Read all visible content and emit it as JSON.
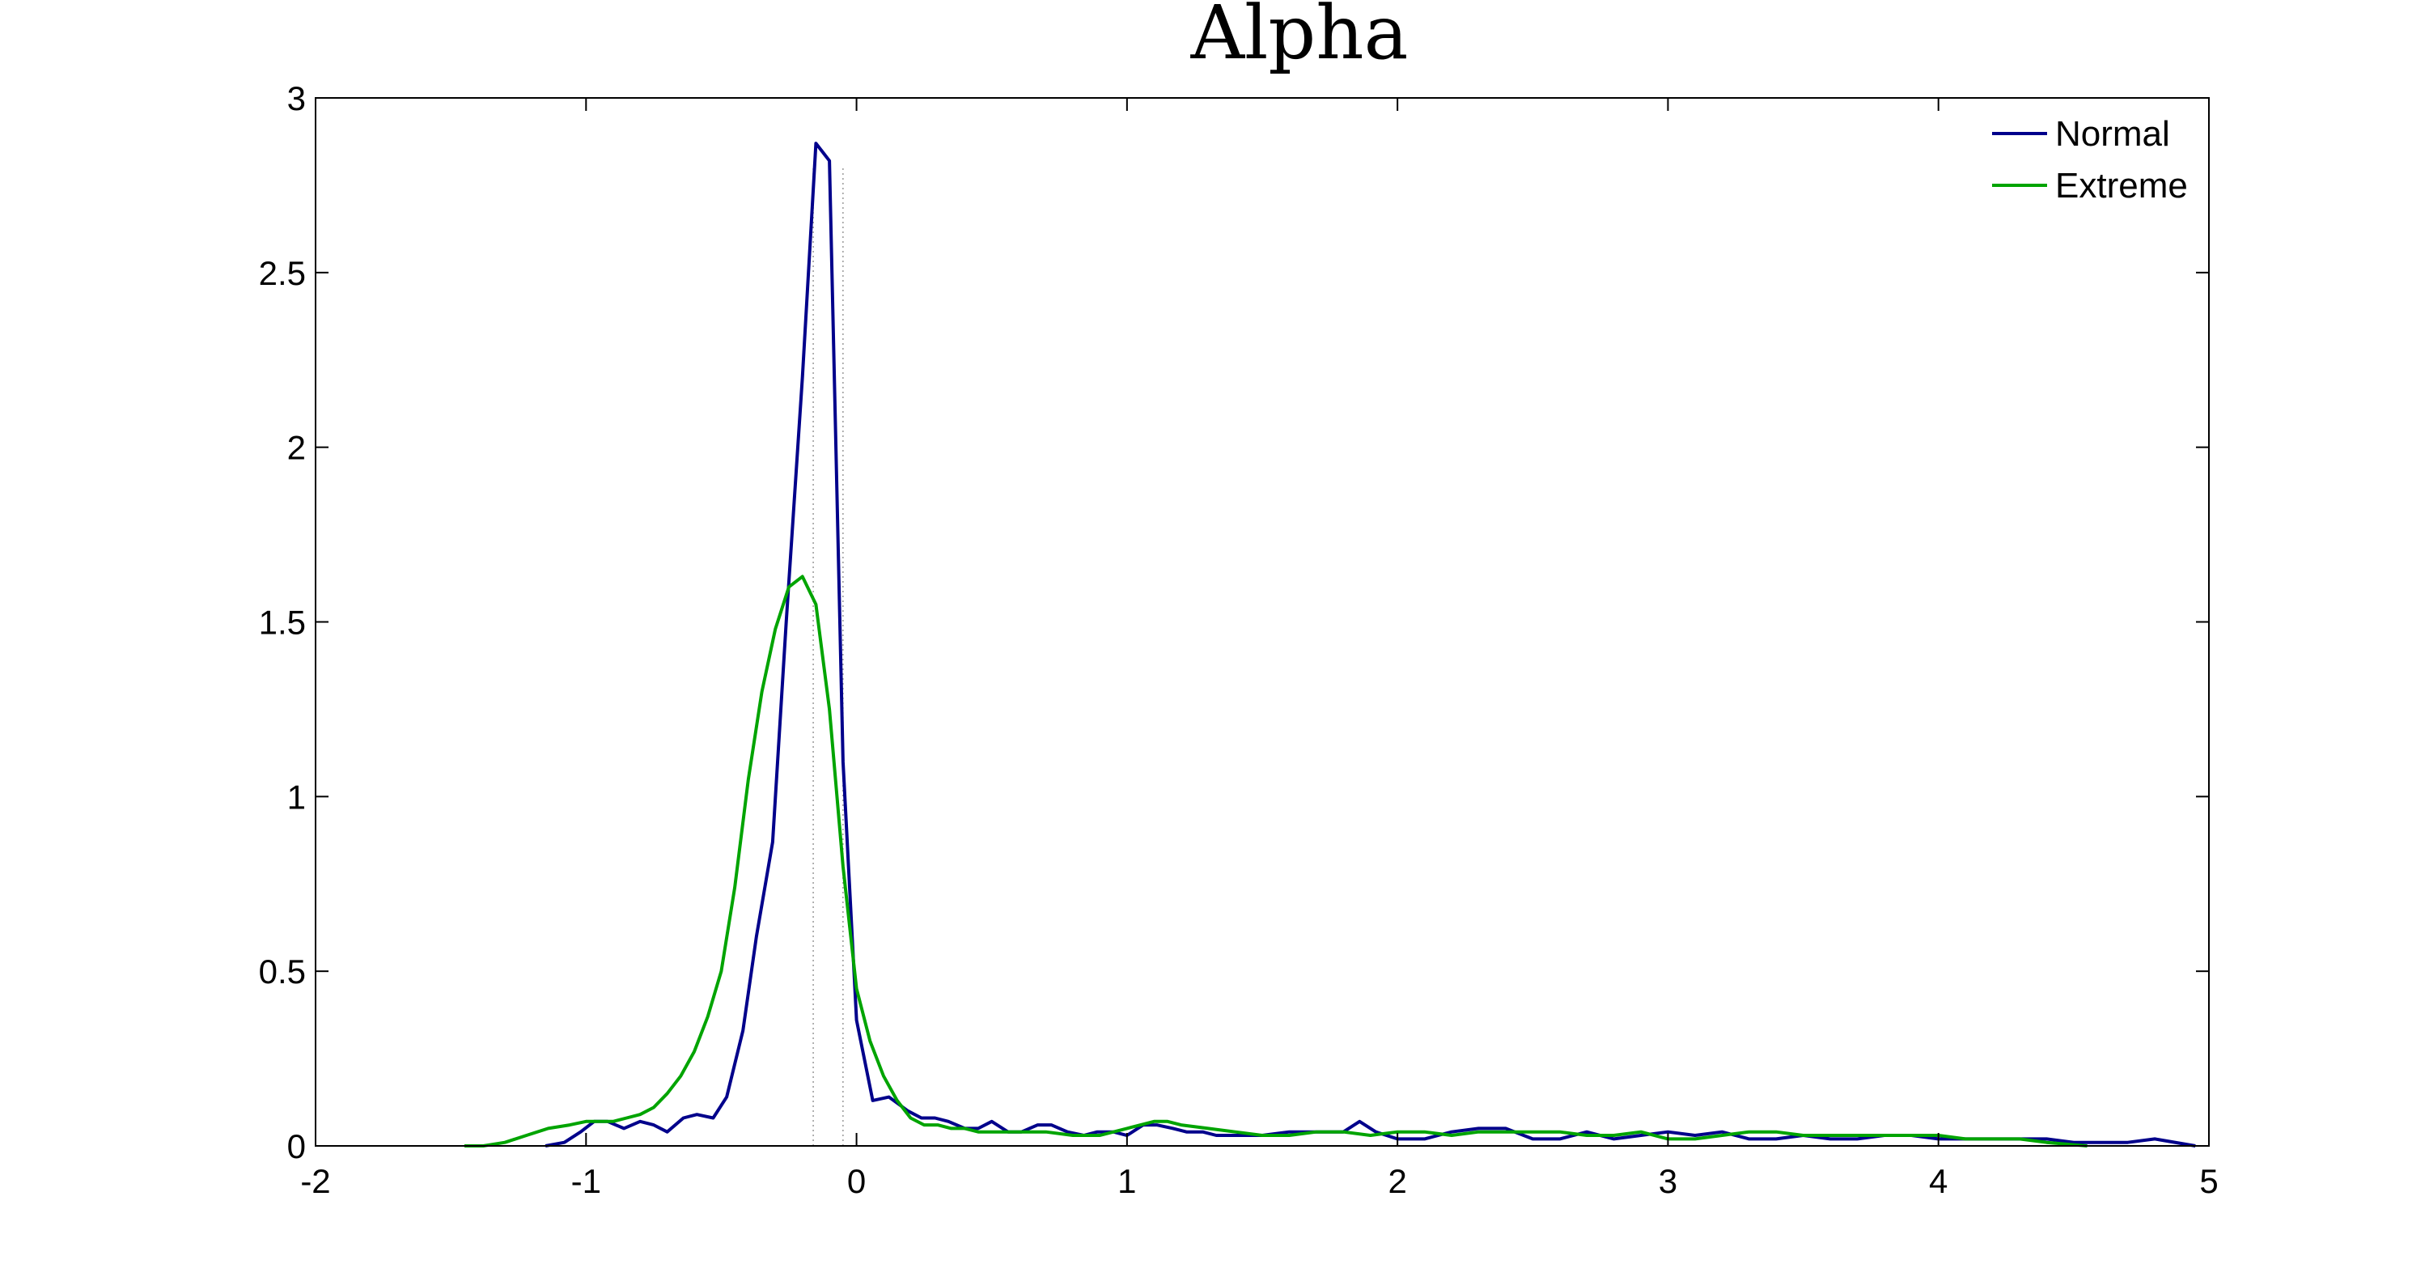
{
  "chart_data": {
    "type": "line",
    "title": "Alpha",
    "xlabel": "",
    "ylabel": "",
    "xlim": [
      -2,
      5
    ],
    "ylim": [
      0,
      3
    ],
    "x_ticks": [
      -2,
      -1,
      0,
      1,
      2,
      3,
      4,
      5
    ],
    "x_tick_labels": [
      "-2",
      "-1",
      "0",
      "1",
      "2",
      "3",
      "4",
      "5"
    ],
    "y_ticks": [
      0,
      0.5,
      1,
      1.5,
      2,
      2.5,
      3
    ],
    "y_tick_labels": [
      "0",
      "0.5",
      "1",
      "1.5",
      "2",
      "2.5",
      "3"
    ],
    "grid": false,
    "legend_position": "top-right",
    "reference_lines_x": [
      -0.16,
      -0.05
    ],
    "series": [
      {
        "name": "Normal",
        "color": "#00008B",
        "x": [
          -1.15,
          -1.08,
          -1.02,
          -0.97,
          -0.92,
          -0.86,
          -0.8,
          -0.75,
          -0.7,
          -0.64,
          -0.59,
          -0.53,
          -0.48,
          -0.42,
          -0.37,
          -0.31,
          -0.26,
          -0.2,
          -0.15,
          -0.1,
          -0.05,
          0.0,
          0.06,
          0.12,
          0.19,
          0.24,
          0.29,
          0.34,
          0.4,
          0.45,
          0.5,
          0.56,
          0.61,
          0.67,
          0.72,
          0.78,
          0.84,
          0.89,
          0.95,
          1.0,
          1.06,
          1.11,
          1.17,
          1.22,
          1.28,
          1.33,
          1.4,
          1.5,
          1.6,
          1.7,
          1.8,
          1.86,
          1.92,
          2.0,
          2.1,
          2.2,
          2.3,
          2.4,
          2.5,
          2.6,
          2.7,
          2.8,
          2.9,
          3.0,
          3.1,
          3.2,
          3.3,
          3.4,
          3.5,
          3.6,
          3.7,
          3.8,
          3.9,
          4.0,
          4.1,
          4.2,
          4.3,
          4.4,
          4.5,
          4.6,
          4.7,
          4.8,
          4.95
        ],
        "y": [
          0.0,
          0.01,
          0.04,
          0.07,
          0.07,
          0.05,
          0.07,
          0.06,
          0.04,
          0.08,
          0.09,
          0.08,
          0.14,
          0.33,
          0.6,
          0.87,
          1.5,
          2.2,
          2.87,
          2.82,
          1.1,
          0.36,
          0.13,
          0.14,
          0.1,
          0.08,
          0.08,
          0.07,
          0.05,
          0.05,
          0.07,
          0.04,
          0.04,
          0.06,
          0.06,
          0.04,
          0.03,
          0.04,
          0.04,
          0.03,
          0.06,
          0.06,
          0.05,
          0.04,
          0.04,
          0.03,
          0.03,
          0.03,
          0.04,
          0.04,
          0.04,
          0.07,
          0.04,
          0.02,
          0.02,
          0.04,
          0.05,
          0.05,
          0.02,
          0.02,
          0.04,
          0.02,
          0.03,
          0.04,
          0.03,
          0.04,
          0.02,
          0.02,
          0.03,
          0.02,
          0.02,
          0.03,
          0.03,
          0.02,
          0.02,
          0.02,
          0.02,
          0.02,
          0.01,
          0.01,
          0.01,
          0.02,
          0.0
        ]
      },
      {
        "name": "Extreme",
        "color": "#00A400",
        "x": [
          -1.45,
          -1.38,
          -1.3,
          -1.22,
          -1.14,
          -1.06,
          -1.0,
          -0.95,
          -0.9,
          -0.85,
          -0.8,
          -0.75,
          -0.7,
          -0.65,
          -0.6,
          -0.55,
          -0.5,
          -0.45,
          -0.4,
          -0.35,
          -0.3,
          -0.25,
          -0.2,
          -0.15,
          -0.1,
          -0.05,
          0.0,
          0.05,
          0.1,
          0.15,
          0.2,
          0.25,
          0.3,
          0.35,
          0.4,
          0.45,
          0.5,
          0.6,
          0.7,
          0.8,
          0.9,
          1.0,
          1.1,
          1.15,
          1.2,
          1.3,
          1.4,
          1.5,
          1.6,
          1.7,
          1.8,
          1.9,
          2.0,
          2.1,
          2.2,
          2.3,
          2.4,
          2.5,
          2.6,
          2.7,
          2.8,
          2.9,
          3.0,
          3.1,
          3.2,
          3.3,
          3.4,
          3.5,
          3.6,
          3.7,
          3.8,
          3.9,
          4.0,
          4.1,
          4.2,
          4.3,
          4.4,
          4.55
        ],
        "y": [
          0.0,
          0.0,
          0.01,
          0.03,
          0.05,
          0.06,
          0.07,
          0.07,
          0.07,
          0.08,
          0.09,
          0.11,
          0.15,
          0.2,
          0.27,
          0.37,
          0.5,
          0.74,
          1.05,
          1.3,
          1.48,
          1.6,
          1.63,
          1.55,
          1.25,
          0.8,
          0.45,
          0.3,
          0.2,
          0.13,
          0.08,
          0.06,
          0.06,
          0.05,
          0.05,
          0.04,
          0.04,
          0.04,
          0.04,
          0.03,
          0.03,
          0.05,
          0.07,
          0.07,
          0.06,
          0.05,
          0.04,
          0.03,
          0.03,
          0.04,
          0.04,
          0.03,
          0.04,
          0.04,
          0.03,
          0.04,
          0.04,
          0.04,
          0.04,
          0.03,
          0.03,
          0.04,
          0.02,
          0.02,
          0.03,
          0.04,
          0.04,
          0.03,
          0.03,
          0.03,
          0.03,
          0.03,
          0.03,
          0.02,
          0.02,
          0.02,
          0.01,
          0.0
        ]
      }
    ]
  }
}
